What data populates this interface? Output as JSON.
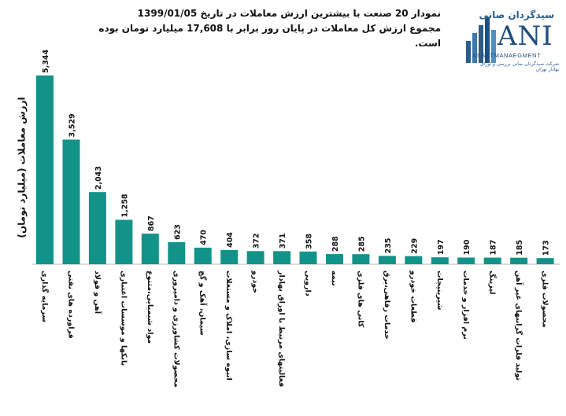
{
  "title_line1": "نمودار 20 صنعت با بیشترین ارزش معاملات در تاریخ 1399/01/05",
  "title_line2": "مجموع ارزش کل معاملات در پایان روز برابر با 17,608 میلیارد تومان بوده است.",
  "logo": {
    "brand_fa": "سیدگردان صانی",
    "brand_en": "ANI",
    "brand_sub": "ASSETMANAEGMENT",
    "tagline": "شرکت سبدگردان صانی بررسی و اوراق بهادار تهران"
  },
  "chart_data": {
    "type": "bar",
    "title": "نمودار 20 صنعت با بیشترین ارزش معاملات در تاریخ 1399/01/05",
    "ylabel": "ارزش معاملات (میلیارد تومان)",
    "xlabel": "",
    "ylim": [
      0,
      5344
    ],
    "grid": false,
    "legend": "none",
    "color": "#12938a",
    "categories": [
      "سرمایه گذاری",
      "فراورده های نفتی",
      "آهن و فولاد",
      "بانکها و موسسات اعتباری",
      "مواد شیمیایی،متنوع",
      "محصولات کشاورزی و دامپروری",
      "سیمان، آهک و گچ",
      "انبوه سازی، املاک و مستغلات",
      "خودرو",
      "فعالیتهای مرتبط با اوراق بهادار",
      "دارویی",
      "بیمه",
      "کانی های فلزی",
      "خدمات رفاهی،برق",
      "قطعات خودرو",
      "شیرینیجات",
      "نرم افزار و خدمات",
      "لیزینگ",
      "تولید فلزات گرانبهای غیر آهن",
      "محصولات فلزی"
    ],
    "values": [
      5344,
      3529,
      2043,
      1258,
      867,
      623,
      470,
      404,
      372,
      371,
      358,
      288,
      285,
      235,
      229,
      197,
      190,
      187,
      185,
      173
    ],
    "value_labels": [
      "5,344",
      "3,529",
      "2,043",
      "1,258",
      "867",
      "623",
      "470",
      "404",
      "372",
      "371",
      "358",
      "288",
      "285",
      "235",
      "229",
      "197",
      "190",
      "187",
      "185",
      "173"
    ]
  }
}
